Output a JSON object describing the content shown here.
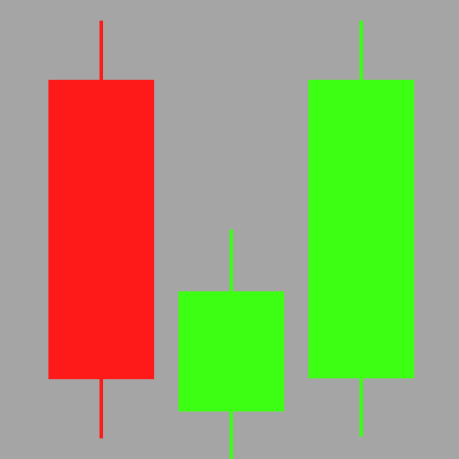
{
  "chart_data": {
    "type": "candlestick",
    "grid": false,
    "legend": "none",
    "ylim": [
      0,
      512
    ],
    "colors": {
      "background": "#a5a5a5",
      "down": "#ff1a1a",
      "up": "#3dff14"
    },
    "candles": [
      {
        "index": 0,
        "direction": "down",
        "open": 423,
        "close": 89,
        "high": 489,
        "low": 23
      },
      {
        "index": 1,
        "direction": "up",
        "open": 53,
        "close": 187,
        "high": 256,
        "low": 0
      },
      {
        "index": 2,
        "direction": "up",
        "open": 90,
        "close": 423,
        "high": 489,
        "low": 25
      }
    ]
  }
}
